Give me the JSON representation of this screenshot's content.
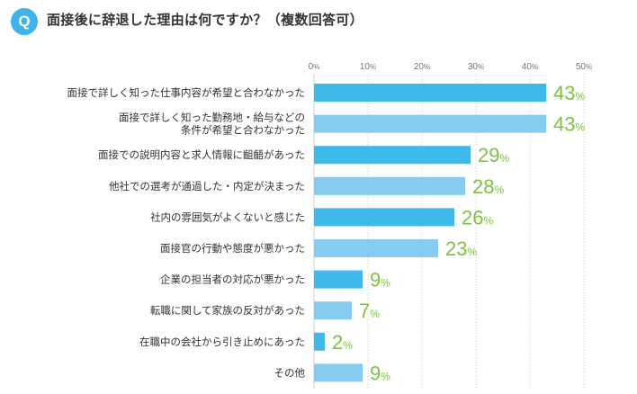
{
  "header": {
    "badge": "Q"
  },
  "chart_data": {
    "type": "bar",
    "orientation": "horizontal",
    "title": "面接後に辞退した理由は何ですか？（複数回答可）",
    "categories": [
      [
        "面接で詳しく知った仕事内容が希望と合わなかった"
      ],
      [
        "面接で詳しく知った勤務地・給与などの",
        "条件が希望と合わなかった"
      ],
      [
        "面接での説明内容と求人情報に齟齬があった"
      ],
      [
        "他社での選考が通過した・内定が決まった"
      ],
      [
        "社内の雰囲気がよくないと感じた"
      ],
      [
        "面接官の行動や態度が悪かった"
      ],
      [
        "企業の担当者の対応が悪かった"
      ],
      [
        "転職に関して家族の反対があった"
      ],
      [
        "在職中の会社から引き止めにあった"
      ],
      [
        "その他"
      ]
    ],
    "values": [
      43,
      43,
      29,
      28,
      26,
      23,
      9,
      7,
      2,
      9
    ],
    "unit": "%",
    "xlim": [
      0,
      50
    ],
    "ticks": [
      0,
      10,
      20,
      30,
      40,
      50
    ],
    "colors": {
      "dark": "#3fb8ec",
      "light": "#86cbf0",
      "value": "#7dc241",
      "badge": "#3fb3ea"
    }
  }
}
